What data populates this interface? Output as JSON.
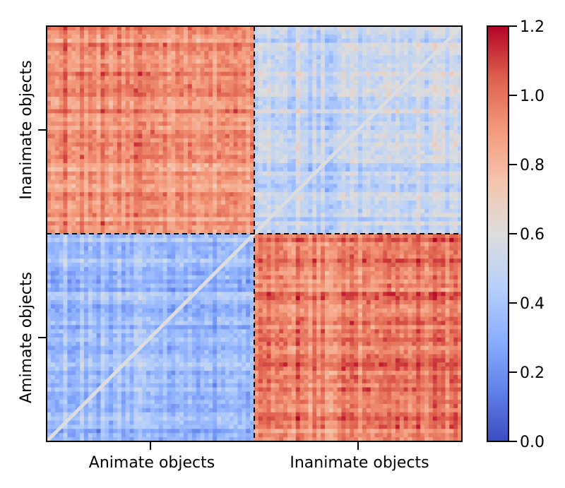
{
  "chart_data": {
    "type": "heatmap",
    "title": "",
    "xlabel": "",
    "ylabel": "",
    "matrix_size": 100,
    "groups": [
      "Animate objects",
      "Inanimate objects"
    ],
    "x_tick_labels": [
      "Animate objects",
      "Inanimate objects"
    ],
    "y_tick_labels": [
      "Inanimate objects",
      "Amimate objects"
    ],
    "block_means": {
      "top_left": 0.92,
      "top_right": 0.52,
      "bottom_left": 0.35,
      "bottom_right": 0.98
    },
    "diagonal_value": 0.6,
    "color_range": [
      0.0,
      1.2
    ],
    "colormap": "coolwarm",
    "colorbar_ticks": [
      "0.0",
      "0.2",
      "0.4",
      "0.6",
      "0.8",
      "1.0",
      "1.2"
    ],
    "colorbar_tick_values": [
      0.0,
      0.2,
      0.4,
      0.6,
      0.8,
      1.0,
      1.2
    ],
    "divider_style": "dashed",
    "grid": false
  }
}
